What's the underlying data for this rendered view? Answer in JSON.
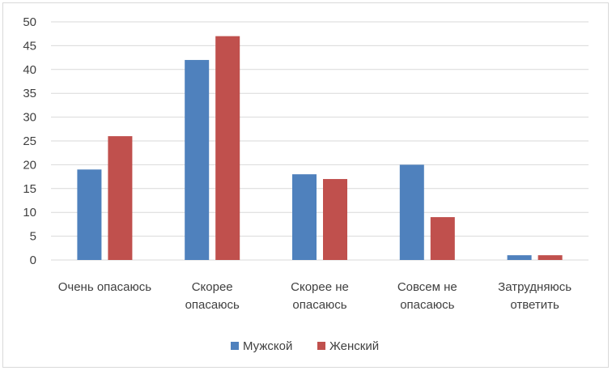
{
  "chart_data": {
    "type": "bar",
    "title": "",
    "xlabel": "",
    "ylabel": "",
    "ylim": [
      0,
      50
    ],
    "yticks": [
      0,
      5,
      10,
      15,
      20,
      25,
      30,
      35,
      40,
      45,
      50
    ],
    "grid": true,
    "legend_position": "bottom",
    "categories": [
      [
        "Очень опасаюсь"
      ],
      [
        "Скорее",
        "опасаюсь"
      ],
      [
        "Скорее не",
        "опасаюсь"
      ],
      [
        "Совсем не",
        "опасаюсь"
      ],
      [
        "Затрудняюсь",
        "ответить"
      ]
    ],
    "series": [
      {
        "name": "Мужской",
        "color": "#4f81bd",
        "values": [
          19,
          42,
          18,
          20,
          1
        ]
      },
      {
        "name": "Женский",
        "color": "#c0504d",
        "values": [
          26,
          47,
          17,
          9,
          1
        ]
      }
    ]
  }
}
